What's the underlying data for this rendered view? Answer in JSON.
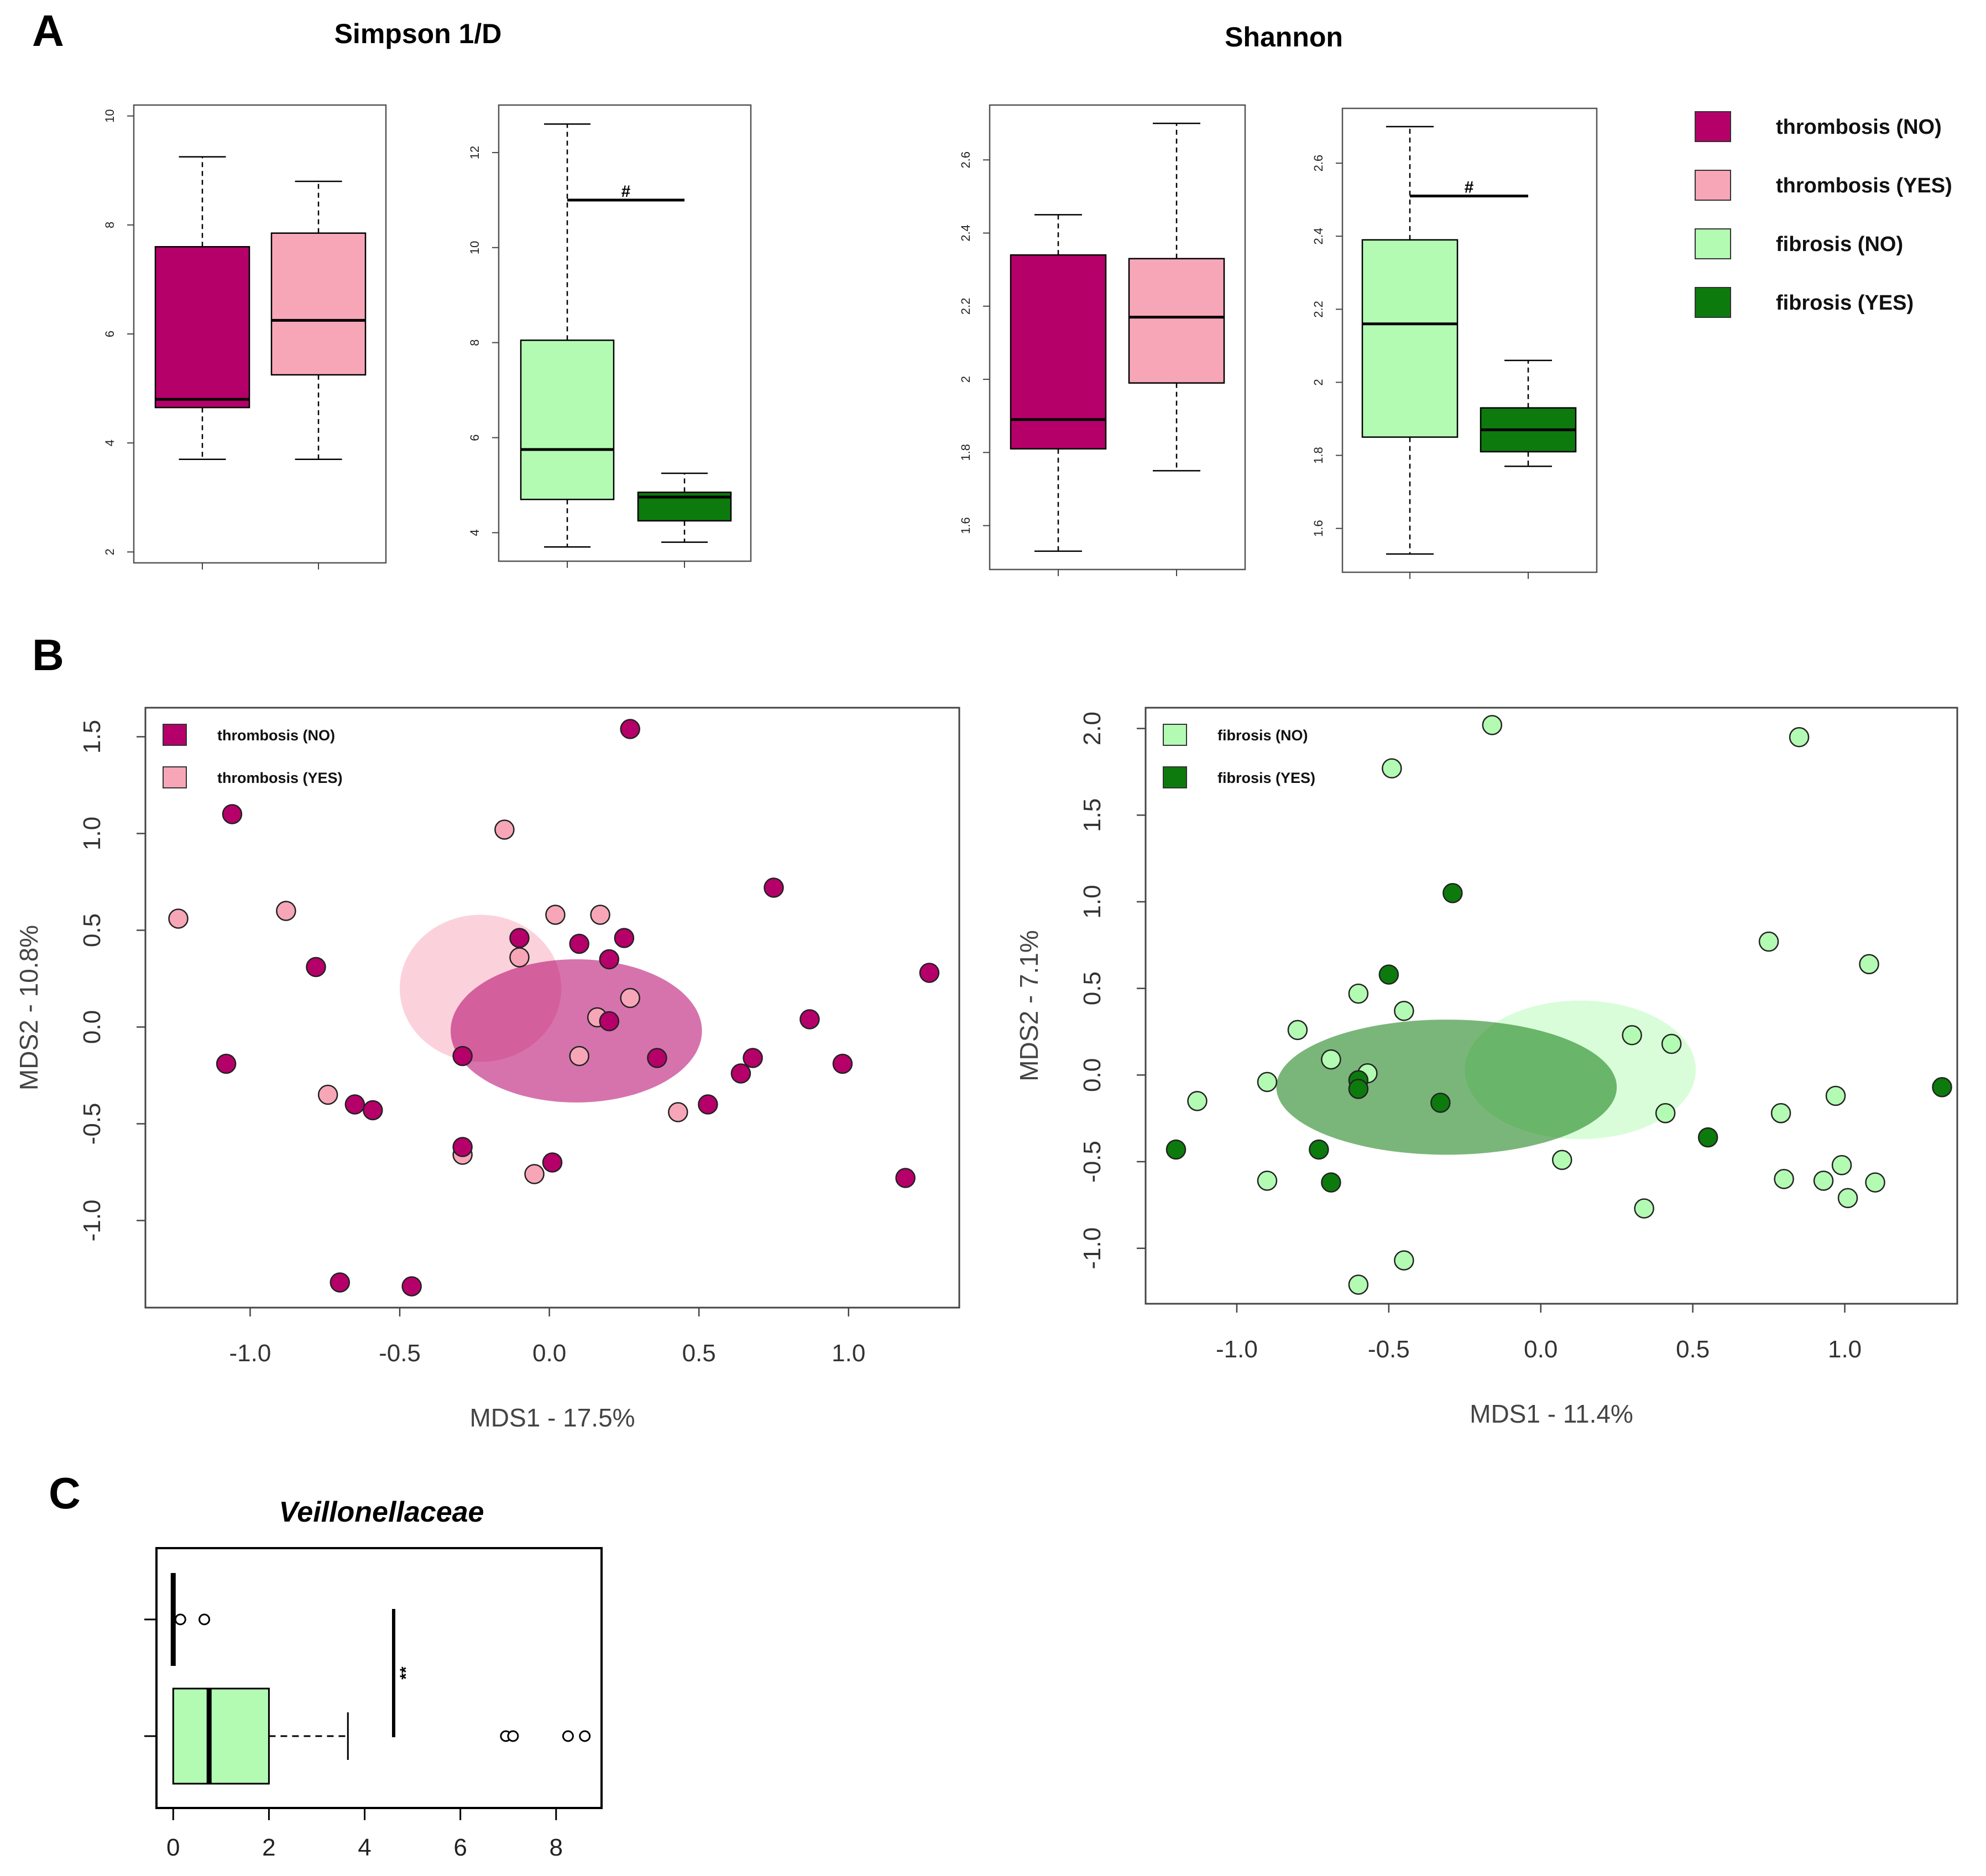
{
  "labels": {
    "a": "A",
    "b": "B",
    "c": "C"
  },
  "colors": {
    "thrombosis_no": "#b5006a",
    "thrombosis_yes": "#f7a6b8",
    "fibrosis_no": "#b3fbb3",
    "fibrosis_yes": "#0d7a0d"
  },
  "legend_a": [
    "thrombosis (NO)",
    "thrombosis (YES)",
    "fibrosis (NO)",
    "fibrosis (YES)"
  ],
  "chart_data": [
    {
      "id": "simpson_thrombosis",
      "type": "boxplot",
      "title": "Simpson 1/D",
      "ylim": [
        1.8,
        10.2
      ],
      "yticks": [
        2,
        4,
        6,
        8,
        10
      ],
      "groups": [
        {
          "name": "thrombosis (NO)",
          "color_key": "thrombosis_no",
          "min": 3.7,
          "q1": 4.65,
          "median": 4.8,
          "q3": 7.6,
          "max": 9.25
        },
        {
          "name": "thrombosis (YES)",
          "color_key": "thrombosis_yes",
          "min": 3.7,
          "q1": 5.25,
          "median": 6.25,
          "q3": 7.85,
          "max": 8.8
        }
      ]
    },
    {
      "id": "simpson_fibrosis",
      "type": "boxplot",
      "ylim": [
        3.4,
        13.0
      ],
      "yticks": [
        4,
        6,
        8,
        10,
        12
      ],
      "significance": "#",
      "sig_y": 11,
      "groups": [
        {
          "name": "fibrosis (NO)",
          "color_key": "fibrosis_no",
          "min": 3.7,
          "q1": 4.7,
          "median": 5.75,
          "q3": 8.05,
          "max": 12.6
        },
        {
          "name": "fibrosis (YES)",
          "color_key": "fibrosis_yes",
          "min": 3.8,
          "q1": 4.25,
          "median": 4.75,
          "q3": 4.85,
          "max": 5.25
        }
      ]
    },
    {
      "id": "shannon_thrombosis",
      "type": "boxplot",
      "title": "Shannon",
      "ylim": [
        1.48,
        2.75
      ],
      "yticks": [
        1.6,
        1.8,
        2.0,
        2.2,
        2.4,
        2.6
      ],
      "groups": [
        {
          "name": "thrombosis (NO)",
          "color_key": "thrombosis_no",
          "min": 1.53,
          "q1": 1.81,
          "median": 1.89,
          "q3": 2.34,
          "max": 2.45
        },
        {
          "name": "thrombosis (YES)",
          "color_key": "thrombosis_yes",
          "min": 1.75,
          "q1": 1.99,
          "median": 2.17,
          "q3": 2.33,
          "max": 2.7
        }
      ]
    },
    {
      "id": "shannon_fibrosis",
      "type": "boxplot",
      "ylim": [
        1.48,
        2.75
      ],
      "yticks": [
        1.6,
        1.8,
        2.0,
        2.2,
        2.4,
        2.6
      ],
      "significance": "#",
      "sig_y": 2.51,
      "groups": [
        {
          "name": "fibrosis (NO)",
          "color_key": "fibrosis_no",
          "min": 1.53,
          "q1": 1.85,
          "median": 2.16,
          "q3": 2.39,
          "max": 2.7
        },
        {
          "name": "fibrosis (YES)",
          "color_key": "fibrosis_yes",
          "min": 1.77,
          "q1": 1.81,
          "median": 1.87,
          "q3": 1.93,
          "max": 2.06
        }
      ]
    },
    {
      "id": "pcoa_thrombosis",
      "type": "scatter",
      "xlabel": "MDS1 - 17.5%",
      "ylabel": "MDS2 - 10.8%",
      "xlim": [
        -1.35,
        1.37
      ],
      "ylim": [
        -1.45,
        1.65
      ],
      "xticks": [
        "-1.0",
        "-0.5",
        "0.0",
        "0.5",
        "1.0"
      ],
      "yticks": [
        "-1.0",
        "-0.5",
        "0.0",
        "0.5",
        "1.0",
        "1.5"
      ],
      "legend": [
        {
          "label": "thrombosis (NO)",
          "color_key": "thrombosis_no"
        },
        {
          "label": "thrombosis (YES)",
          "color_key": "thrombosis_yes"
        }
      ],
      "ellipses": [
        {
          "group": "thrombosis (YES)",
          "color_key": "thrombosis_yes",
          "cx": -0.23,
          "cy": 0.2,
          "rx": 0.27,
          "ry": 0.38,
          "opacity": 0.5
        },
        {
          "group": "thrombosis (NO)",
          "color_key": "thrombosis_no",
          "cx": 0.09,
          "cy": -0.02,
          "rx": 0.42,
          "ry": 0.37,
          "opacity": 0.55
        }
      ],
      "series": [
        {
          "name": "thrombosis (YES)",
          "color_key": "thrombosis_yes",
          "points": [
            [
              -1.24,
              0.56
            ],
            [
              -0.88,
              0.6
            ],
            [
              -0.15,
              1.02
            ],
            [
              -0.74,
              -0.35
            ],
            [
              -0.1,
              0.36
            ],
            [
              0.02,
              0.58
            ],
            [
              0.17,
              0.58
            ],
            [
              0.16,
              0.05
            ],
            [
              0.1,
              -0.15
            ],
            [
              0.27,
              0.15
            ],
            [
              -0.29,
              -0.66
            ],
            [
              -0.05,
              -0.76
            ],
            [
              0.43,
              -0.44
            ]
          ]
        },
        {
          "name": "thrombosis (NO)",
          "color_key": "thrombosis_no",
          "points": [
            [
              0.27,
              1.54
            ],
            [
              -1.06,
              1.1
            ],
            [
              -0.78,
              0.31
            ],
            [
              -1.08,
              -0.19
            ],
            [
              -0.65,
              -0.4
            ],
            [
              -0.59,
              -0.43
            ],
            [
              -0.1,
              0.46
            ],
            [
              0.1,
              0.43
            ],
            [
              0.25,
              0.46
            ],
            [
              0.2,
              0.35
            ],
            [
              0.2,
              0.03
            ],
            [
              0.36,
              -0.16
            ],
            [
              -0.29,
              -0.15
            ],
            [
              -0.29,
              -0.62
            ],
            [
              0.01,
              -0.7
            ],
            [
              0.53,
              -0.4
            ],
            [
              0.64,
              -0.24
            ],
            [
              0.68,
              -0.16
            ],
            [
              0.75,
              0.72
            ],
            [
              0.87,
              0.04
            ],
            [
              0.98,
              -0.19
            ],
            [
              1.27,
              0.28
            ],
            [
              1.19,
              -0.78
            ],
            [
              -0.7,
              -1.32
            ],
            [
              -0.46,
              -1.34
            ]
          ]
        }
      ]
    },
    {
      "id": "pcoa_fibrosis",
      "type": "scatter",
      "xlabel": "MDS1 - 11.4%",
      "ylabel": "MDS2 - 7.1%",
      "xlim": [
        -1.3,
        1.37
      ],
      "ylim": [
        -1.32,
        2.12
      ],
      "xticks": [
        "-1.0",
        "-0.5",
        "0.0",
        "0.5",
        "1.0"
      ],
      "yticks": [
        "-1.0",
        "-0.5",
        "0.0",
        "0.5",
        "1.0",
        "1.5",
        "2.0"
      ],
      "legend": [
        {
          "label": "fibrosis (NO)",
          "color_key": "fibrosis_no"
        },
        {
          "label": "fibrosis (YES)",
          "color_key": "fibrosis_yes"
        }
      ],
      "ellipses": [
        {
          "group": "fibrosis (NO)",
          "color_key": "fibrosis_no",
          "cx": 0.13,
          "cy": 0.03,
          "rx": 0.38,
          "ry": 0.4,
          "opacity": 0.5
        },
        {
          "group": "fibrosis (YES)",
          "color_key": "fibrosis_yes",
          "cx": -0.31,
          "cy": -0.07,
          "rx": 0.56,
          "ry": 0.39,
          "opacity": 0.55
        }
      ],
      "series": [
        {
          "name": "fibrosis (NO)",
          "color_key": "fibrosis_no",
          "points": [
            [
              -0.16,
              2.02
            ],
            [
              0.85,
              1.95
            ],
            [
              -0.49,
              1.77
            ],
            [
              -1.13,
              -0.15
            ],
            [
              -0.9,
              -0.04
            ],
            [
              -0.8,
              0.26
            ],
            [
              -0.69,
              0.09
            ],
            [
              -0.6,
              0.47
            ],
            [
              -0.45,
              0.37
            ],
            [
              -0.57,
              0.01
            ],
            [
              -0.9,
              -0.61
            ],
            [
              -0.6,
              -1.21
            ],
            [
              -0.45,
              -1.07
            ],
            [
              0.07,
              -0.49
            ],
            [
              0.3,
              0.23
            ],
            [
              0.43,
              0.18
            ],
            [
              0.41,
              -0.22
            ],
            [
              0.34,
              -0.77
            ],
            [
              0.75,
              0.77
            ],
            [
              1.08,
              0.64
            ],
            [
              0.79,
              -0.22
            ],
            [
              0.97,
              -0.12
            ],
            [
              0.8,
              -0.6
            ],
            [
              0.93,
              -0.61
            ],
            [
              0.99,
              -0.52
            ],
            [
              1.01,
              -0.71
            ],
            [
              1.1,
              -0.62
            ]
          ]
        },
        {
          "name": "fibrosis (YES)",
          "color_key": "fibrosis_yes",
          "points": [
            [
              -0.29,
              1.05
            ],
            [
              -0.5,
              0.58
            ],
            [
              -0.6,
              -0.03
            ],
            [
              -0.6,
              -0.08
            ],
            [
              -0.33,
              -0.16
            ],
            [
              -1.2,
              -0.43
            ],
            [
              -0.73,
              -0.43
            ],
            [
              -0.69,
              -0.62
            ],
            [
              0.55,
              -0.36
            ],
            [
              1.32,
              -0.07
            ]
          ]
        }
      ]
    },
    {
      "id": "veillonellaceae",
      "type": "boxplot",
      "orientation": "horizontal",
      "title": "Veillonellaceae",
      "xlim": [
        -0.35,
        8.95
      ],
      "xticks": [
        0,
        2,
        4,
        6,
        8
      ],
      "significance": "**",
      "groups": [
        {
          "name": "top",
          "color_key": "fibrosis_no",
          "min": 0,
          "q1": 0,
          "median": 0,
          "q3": 0,
          "max": 0,
          "outliers": [
            0.15,
            0.65
          ]
        },
        {
          "name": "bottom",
          "color_key": "fibrosis_no",
          "min": 0,
          "q1": 0,
          "median": 0.75,
          "q3": 2.0,
          "max": 3.65,
          "outliers": [
            6.95,
            7.1,
            8.25,
            8.6
          ]
        }
      ]
    }
  ]
}
